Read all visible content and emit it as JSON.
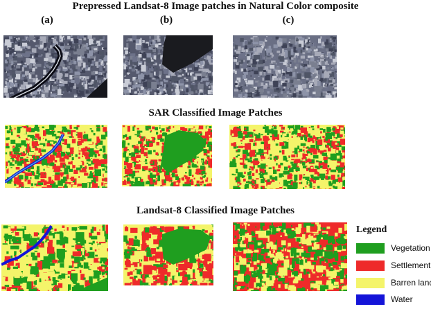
{
  "titles": {
    "natural": "Prepressed Landsat-8 Image patches in Natural Color composite",
    "sar": "SAR Classified Image Patches",
    "landsat": "Landsat-8 Classified Image Patches"
  },
  "patch_labels": [
    "(a)",
    "(b)",
    "(c)"
  ],
  "legend": {
    "title": "Legend",
    "items": [
      {
        "label": "Vegetation",
        "color": "#1f9e1f"
      },
      {
        "label": "Settlement",
        "color": "#ee2a2a"
      },
      {
        "label": "Barren land",
        "color": "#f4f46a"
      },
      {
        "label": "Water",
        "color": "#1414d8"
      }
    ]
  },
  "colors": {
    "vegetation": "#1f9e1f",
    "settlement": "#ee2a2a",
    "barren": "#f4f46a",
    "water": "#1414d8",
    "natural_base": "#55596d"
  }
}
